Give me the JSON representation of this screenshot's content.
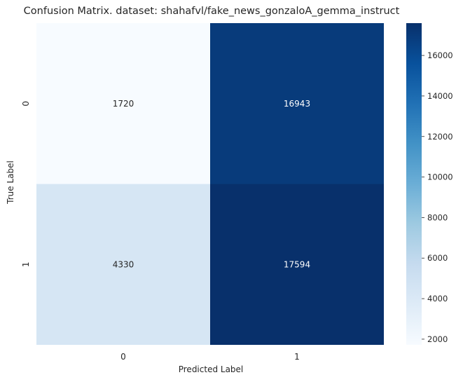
{
  "chart_data": {
    "type": "heatmap",
    "title": "Confusion Matrix. dataset: shahafvl/fake_news_gonzaloA_gemma_instruct",
    "xlabel": "Predicted Label",
    "ylabel": "True Label",
    "x_categories": [
      "0",
      "1"
    ],
    "y_categories": [
      "0",
      "1"
    ],
    "values": [
      [
        1720,
        16943
      ],
      [
        4330,
        17594
      ]
    ],
    "colormap": "Blues",
    "colorbar": {
      "range": [
        1720,
        17594
      ],
      "ticks": [
        2000,
        4000,
        6000,
        8000,
        10000,
        12000,
        14000,
        16000
      ]
    },
    "grid": false
  }
}
